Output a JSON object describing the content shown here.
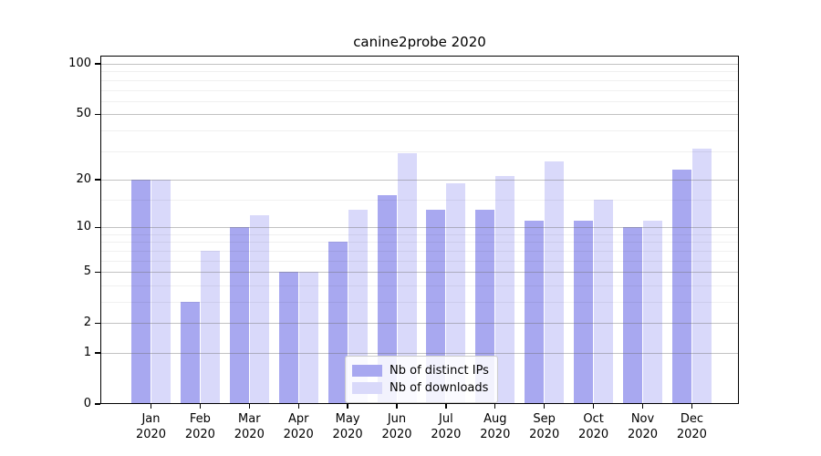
{
  "figure": {
    "title": "canine2probe 2020"
  },
  "chart_data": {
    "type": "bar",
    "title": "canine2probe 2020",
    "categories": [
      "Jan 2020",
      "Feb 2020",
      "Mar 2020",
      "Apr 2020",
      "May 2020",
      "Jun 2020",
      "Jul 2020",
      "Aug 2020",
      "Sep 2020",
      "Oct 2020",
      "Nov 2020",
      "Dec 2020"
    ],
    "x_tick_months": [
      "Jan",
      "Feb",
      "Mar",
      "Apr",
      "May",
      "Jun",
      "Jul",
      "Aug",
      "Sep",
      "Oct",
      "Nov",
      "Dec"
    ],
    "x_tick_year": "2020",
    "series": [
      {
        "name": "Nb of distinct IPs",
        "color": "#a8a8f0",
        "values": [
          20,
          3,
          10,
          5,
          8,
          16,
          13,
          13,
          11,
          11,
          10,
          23
        ]
      },
      {
        "name": "Nb of downloads",
        "color": "#d9d9fa",
        "values": [
          20,
          7,
          12,
          5,
          13,
          29,
          19,
          21,
          26,
          15,
          11,
          31
        ]
      }
    ],
    "xlabel": "",
    "ylabel": "",
    "y_axis": {
      "scale": "log1p",
      "ticks": [
        100,
        50,
        20,
        10,
        5,
        2,
        1,
        0
      ],
      "minor_ticks": [
        3,
        4,
        6,
        7,
        8,
        9,
        15,
        30,
        40,
        60,
        70,
        80,
        90
      ],
      "ylim": [
        0,
        112
      ]
    },
    "grid": {
      "enabled": true,
      "drawn_above_bars": true,
      "major_color": "#b0b0b0",
      "minor_color": "#ebebeb"
    },
    "legend": {
      "position": "lower center",
      "entries": [
        "Nb of distinct IPs",
        "Nb of downloads"
      ]
    }
  }
}
